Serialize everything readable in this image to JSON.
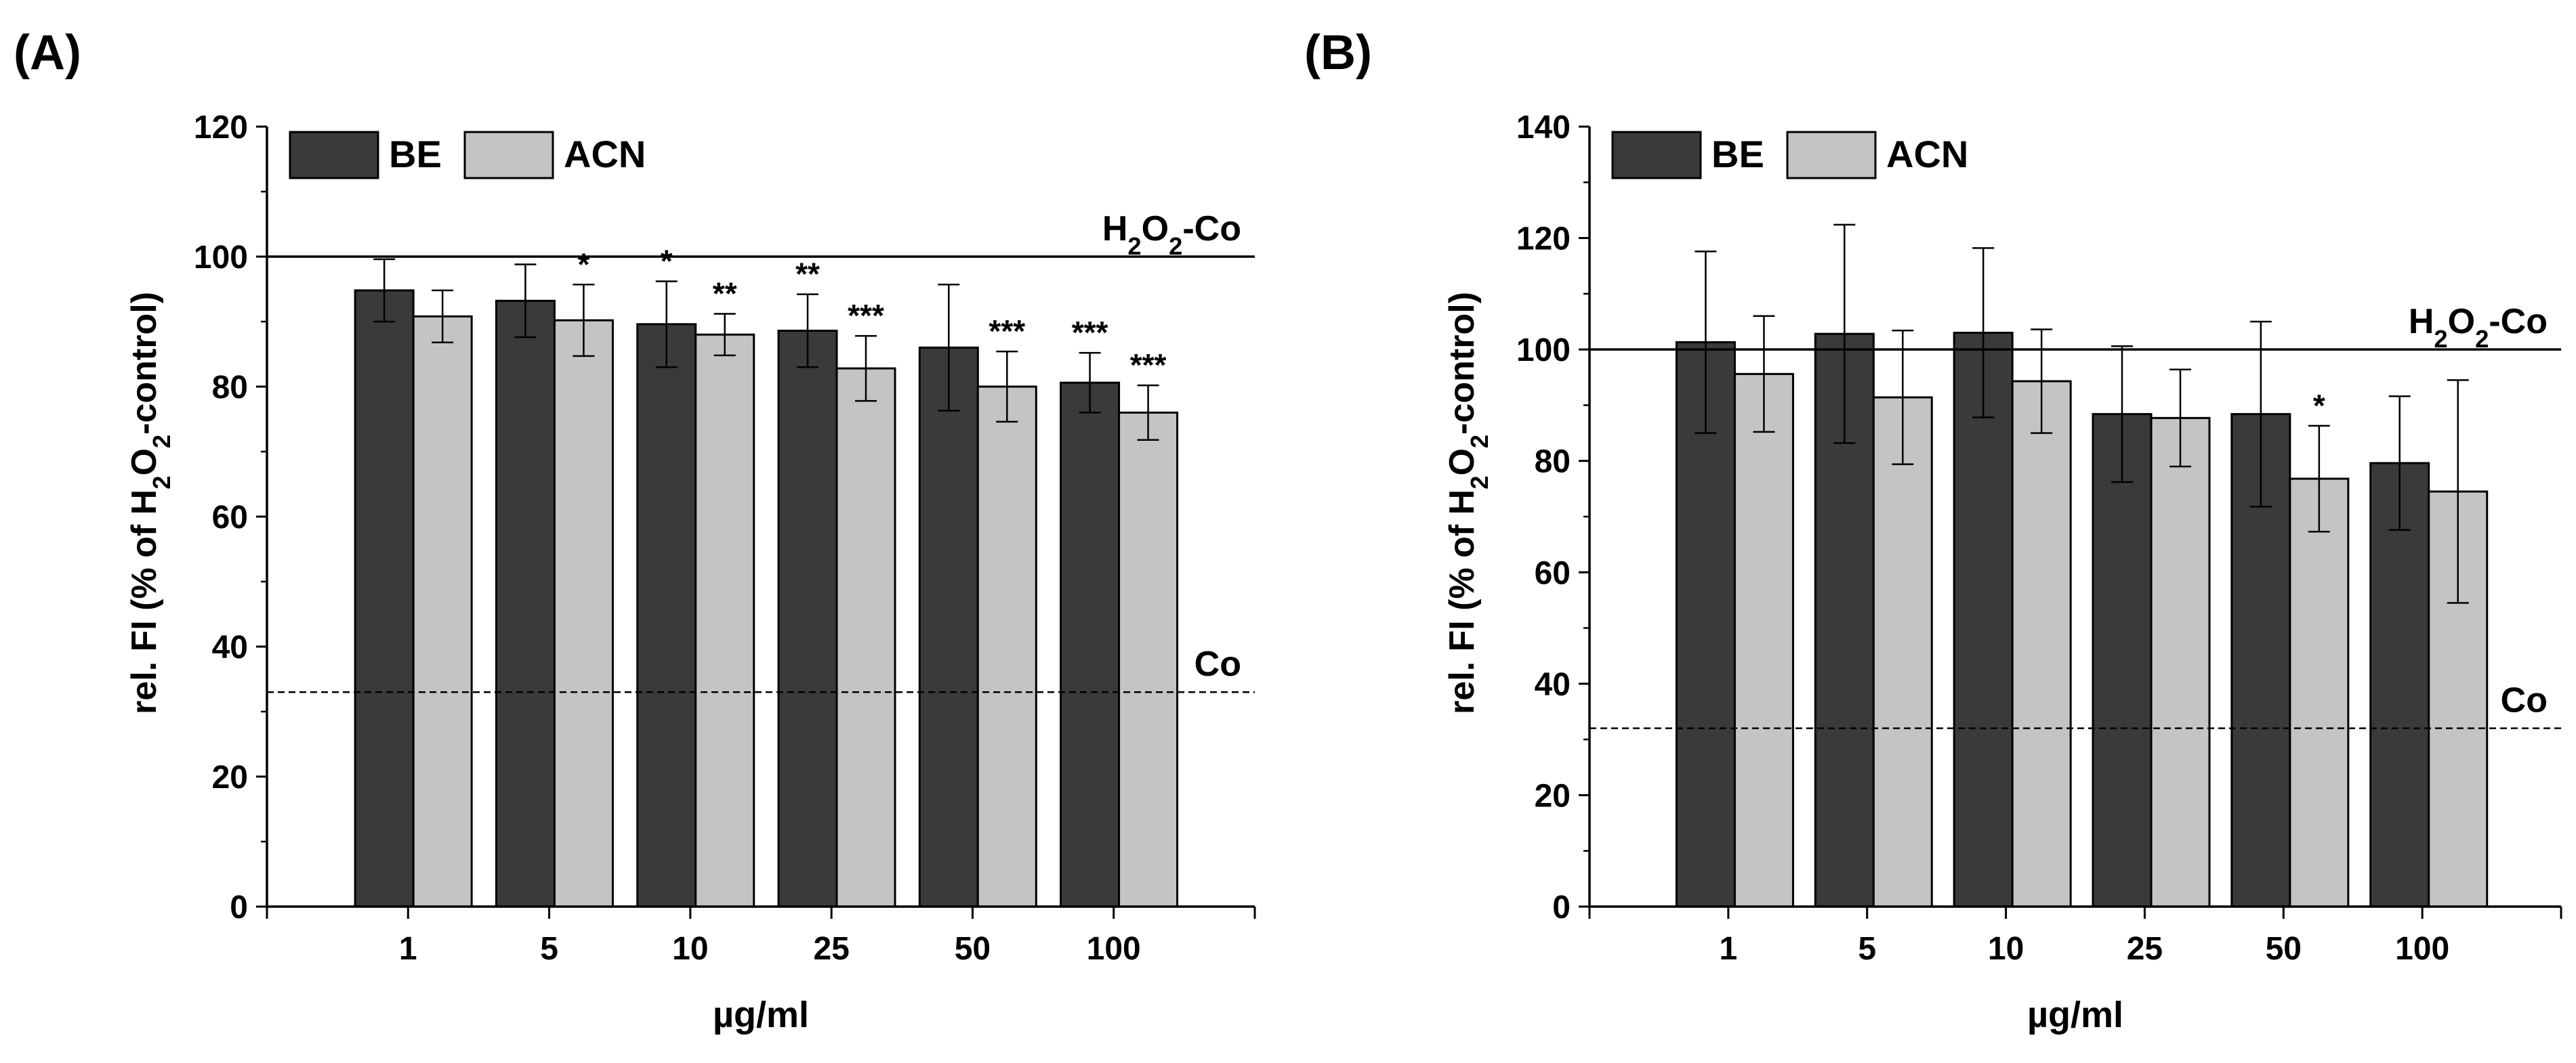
{
  "chart_data": [
    {
      "panel_label": "(A)",
      "type": "bar",
      "categories": [
        "1",
        "5",
        "10",
        "25",
        "50",
        "100"
      ],
      "xlabel": "µg/ml",
      "ylabel": "rel. FI (% of H2O2-control)",
      "ylim": [
        0,
        120
      ],
      "yticks": [
        "0",
        "20",
        "40",
        "60",
        "80",
        "100",
        "120"
      ],
      "legend": {
        "placement": "top-left"
      },
      "series": [
        {
          "name": "BE",
          "color": "#3a3a3a",
          "values": [
            94.8,
            93.2,
            89.6,
            88.6,
            86.0,
            80.6
          ],
          "errors": [
            4.8,
            5.6,
            6.6,
            5.6,
            9.7,
            4.6
          ],
          "significance": [
            "",
            "",
            "*",
            "**",
            "",
            "***"
          ]
        },
        {
          "name": "ACN",
          "color": "#c4c4c4",
          "values": [
            90.8,
            90.2,
            88.0,
            82.8,
            80.0,
            76.0
          ],
          "errors": [
            4.0,
            5.5,
            3.2,
            5.0,
            5.4,
            4.2
          ],
          "significance": [
            "",
            "*",
            "**",
            "***",
            "***",
            "***"
          ]
        }
      ],
      "reference_lines": [
        {
          "label": "H2O2-Co",
          "value": 100,
          "style": "solid"
        },
        {
          "label": "Co",
          "value": 33,
          "style": "dashed"
        }
      ]
    },
    {
      "panel_label": "(B)",
      "type": "bar",
      "categories": [
        "1",
        "5",
        "10",
        "25",
        "50",
        "100"
      ],
      "xlabel": "µg/ml",
      "ylabel": "rel. FI (% of H2O2-control)",
      "ylim": [
        0,
        140
      ],
      "yticks": [
        "0",
        "20",
        "40",
        "60",
        "80",
        "100",
        "120",
        "140"
      ],
      "legend": {
        "placement": "top-left"
      },
      "series": [
        {
          "name": "BE",
          "color": "#3a3a3a",
          "values": [
            101.3,
            102.8,
            103.0,
            88.4,
            88.4,
            79.6
          ],
          "errors": [
            16.3,
            19.6,
            15.2,
            12.2,
            16.6,
            12.0
          ],
          "significance": [
            "",
            "",
            "",
            "",
            "",
            ""
          ]
        },
        {
          "name": "ACN",
          "color": "#c4c4c4",
          "values": [
            95.6,
            91.4,
            94.3,
            87.7,
            76.8,
            74.5
          ],
          "errors": [
            10.4,
            12.0,
            9.3,
            8.7,
            9.5,
            20.0
          ],
          "significance": [
            "",
            "",
            "",
            "",
            "*",
            ""
          ]
        }
      ],
      "reference_lines": [
        {
          "label": "H2O2-Co",
          "value": 100,
          "style": "solid"
        },
        {
          "label": "Co",
          "value": 32,
          "style": "dashed"
        }
      ]
    }
  ]
}
